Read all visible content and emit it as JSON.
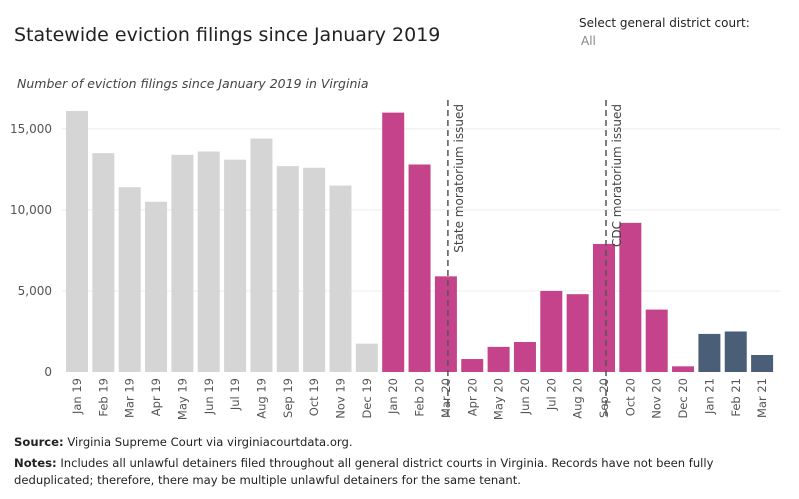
{
  "header": {
    "title": "Statewide eviction filings since January 2019",
    "filter_label": "Select general district court:",
    "filter_value": "All"
  },
  "subtitle": "Number of eviction filings since January 2019 in Virginia",
  "footer": {
    "source_label": "Source:",
    "source_text": "Virginia Supreme Court via virginiacourtdata.org.",
    "notes_label": "Notes:",
    "notes_text": "Includes all unlawful detainers filed throughout all general district courts in Virginia. Records have not been fully deduplicated; therefore, there may be multiple unlawful detainers for the same tenant."
  },
  "colors": {
    "gray": "#d5d5d5",
    "magenta": "#c4438a",
    "navy": "#4a5e78",
    "annotation": "#555555"
  },
  "chart_data": {
    "type": "bar",
    "categories": [
      "Jan 19",
      "Feb 19",
      "Mar 19",
      "Apr 19",
      "May 19",
      "Jun 19",
      "Jul 19",
      "Aug 19",
      "Sep 19",
      "Oct 19",
      "Nov 19",
      "Dec 19",
      "Jan 20",
      "Feb 20",
      "Mar 20",
      "Apr 20",
      "May 20",
      "Jun 20",
      "Jul 20",
      "Aug 20",
      "Sep 20",
      "Oct 20",
      "Nov 20",
      "Dec 20",
      "Jan 21",
      "Feb 21",
      "Mar 21"
    ],
    "values": [
      16100,
      13500,
      11400,
      10500,
      13400,
      13600,
      13100,
      14400,
      12700,
      12600,
      11500,
      1750,
      16000,
      12800,
      5900,
      800,
      1550,
      1850,
      5000,
      4800,
      7900,
      9200,
      3850,
      350,
      2350,
      2500,
      1050
    ],
    "bar_colors": [
      "gray",
      "gray",
      "gray",
      "gray",
      "gray",
      "gray",
      "gray",
      "gray",
      "gray",
      "gray",
      "gray",
      "gray",
      "magenta",
      "magenta",
      "magenta",
      "magenta",
      "magenta",
      "magenta",
      "magenta",
      "magenta",
      "magenta",
      "magenta",
      "magenta",
      "magenta",
      "navy",
      "navy",
      "navy"
    ],
    "yticks": [
      0,
      5000,
      10000,
      15000
    ],
    "ytick_labels": [
      "0",
      "5,000",
      "10,000",
      "15,000"
    ],
    "ylim": [
      0,
      17000
    ],
    "grid": true,
    "annotations": [
      {
        "category_index": 14,
        "label": "State moratorium issued"
      },
      {
        "category_index": 20,
        "label": "CDC moratorium issued"
      }
    ]
  }
}
